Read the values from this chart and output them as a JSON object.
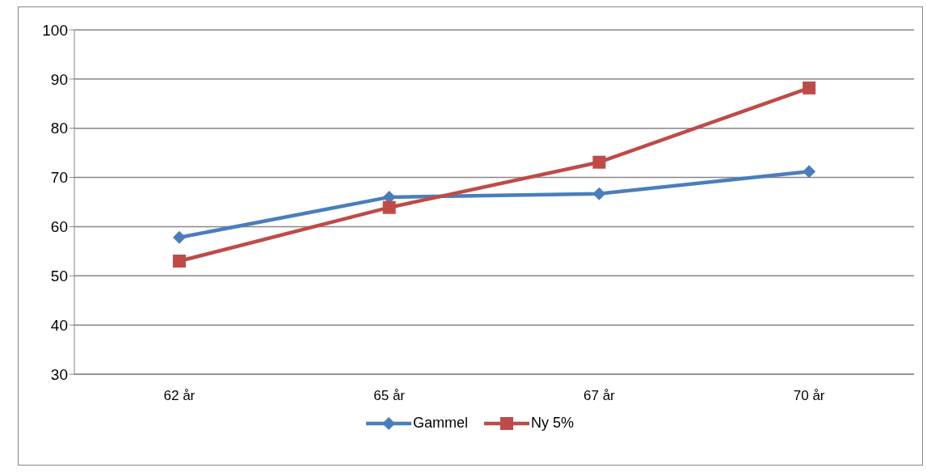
{
  "chart_data": {
    "type": "line",
    "categories": [
      "62 år",
      "65 år",
      "67 år",
      "70 år"
    ],
    "series": [
      {
        "name": "Gammel",
        "color": "#4a7ebb",
        "marker": "diamond",
        "values": [
          57.8,
          66,
          66.7,
          71.2
        ]
      },
      {
        "name": "Ny 5%",
        "color": "#be4b48",
        "marker": "square",
        "values": [
          53,
          63.9,
          73.1,
          88.2
        ]
      }
    ],
    "ylim": [
      30,
      100
    ],
    "yticks": [
      30,
      40,
      50,
      60,
      70,
      80,
      90,
      100
    ],
    "grid": "y",
    "legend": "bottom"
  }
}
